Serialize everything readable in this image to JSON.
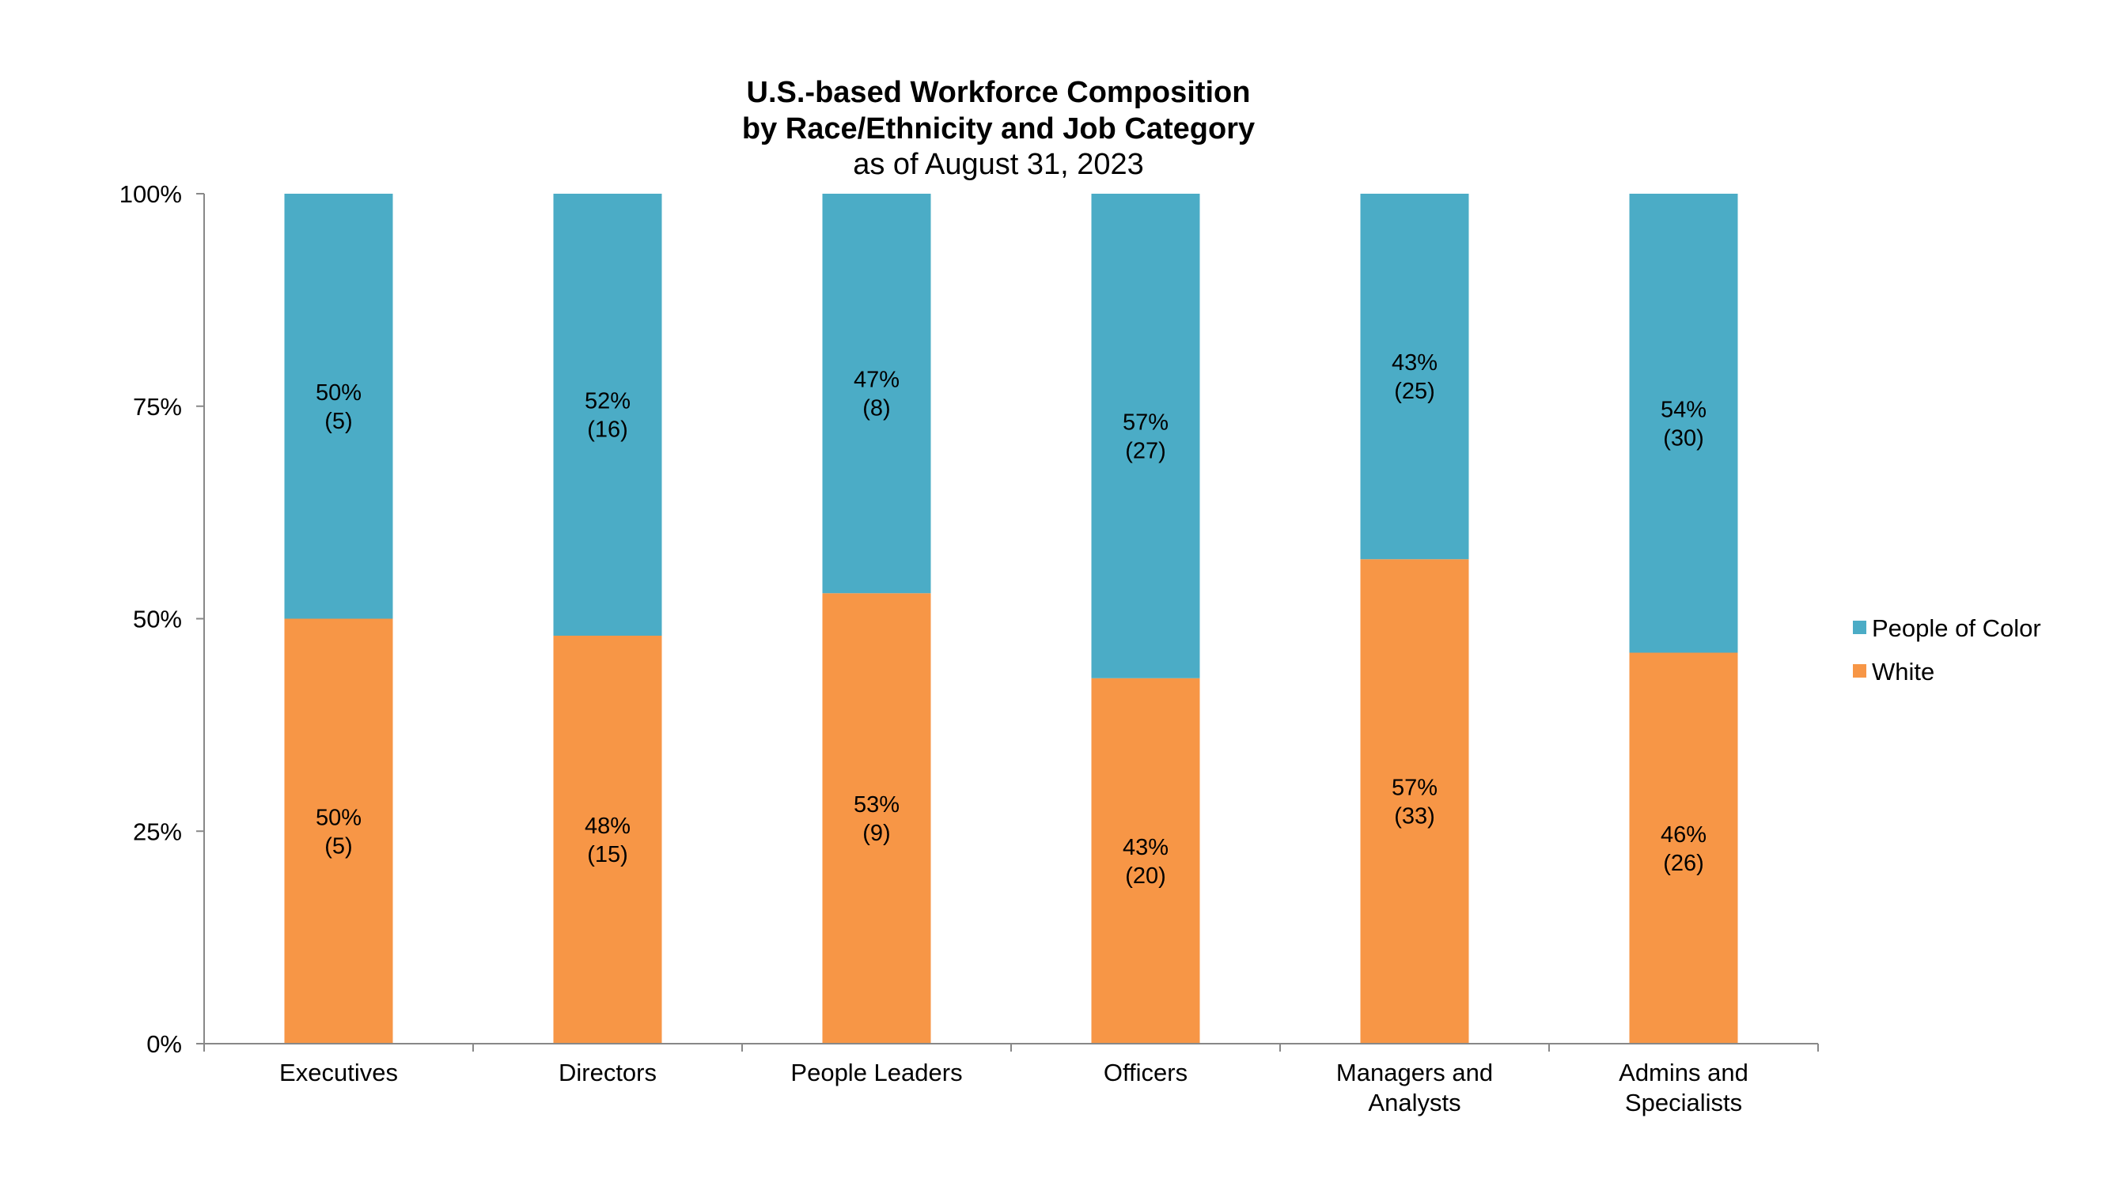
{
  "chart_data": {
    "type": "bar",
    "stacked": true,
    "percent_stacked": true,
    "title": "U.S.-based Workforce Composition",
    "title_line2": "by Race/Ethnicity and Job Category",
    "subtitle": "as of August 31, 2023",
    "categories": [
      [
        "Executives"
      ],
      [
        "Directors"
      ],
      [
        "People Leaders"
      ],
      [
        "Officers"
      ],
      [
        "Managers and",
        "Analysts"
      ],
      [
        "Admins and",
        "Specialists"
      ]
    ],
    "ylim": [
      0,
      100
    ],
    "yticks": [
      "0%",
      "25%",
      "50%",
      "75%",
      "100%"
    ],
    "grid": false,
    "legend_position": "right",
    "series": [
      {
        "name": "White",
        "color": "#F79646",
        "values": [
          50,
          48,
          53,
          43,
          57,
          46
        ],
        "counts": [
          5,
          15,
          9,
          20,
          33,
          26
        ],
        "labels": [
          "50%",
          "48%",
          "53%",
          "43%",
          "57%",
          "46%"
        ],
        "count_labels": [
          "(5)",
          "(15)",
          "(9)",
          "(20)",
          "(33)",
          "(26)"
        ]
      },
      {
        "name": "People of Color",
        "color": "#4BACC6",
        "values": [
          50,
          52,
          47,
          57,
          43,
          54
        ],
        "counts": [
          5,
          16,
          8,
          27,
          25,
          30
        ],
        "labels": [
          "50%",
          "52%",
          "47%",
          "57%",
          "43%",
          "54%"
        ],
        "count_labels": [
          "(5)",
          "(16)",
          "(8)",
          "(27)",
          "(25)",
          "(30)"
        ]
      }
    ],
    "legend": [
      "People of Color",
      "White"
    ]
  }
}
